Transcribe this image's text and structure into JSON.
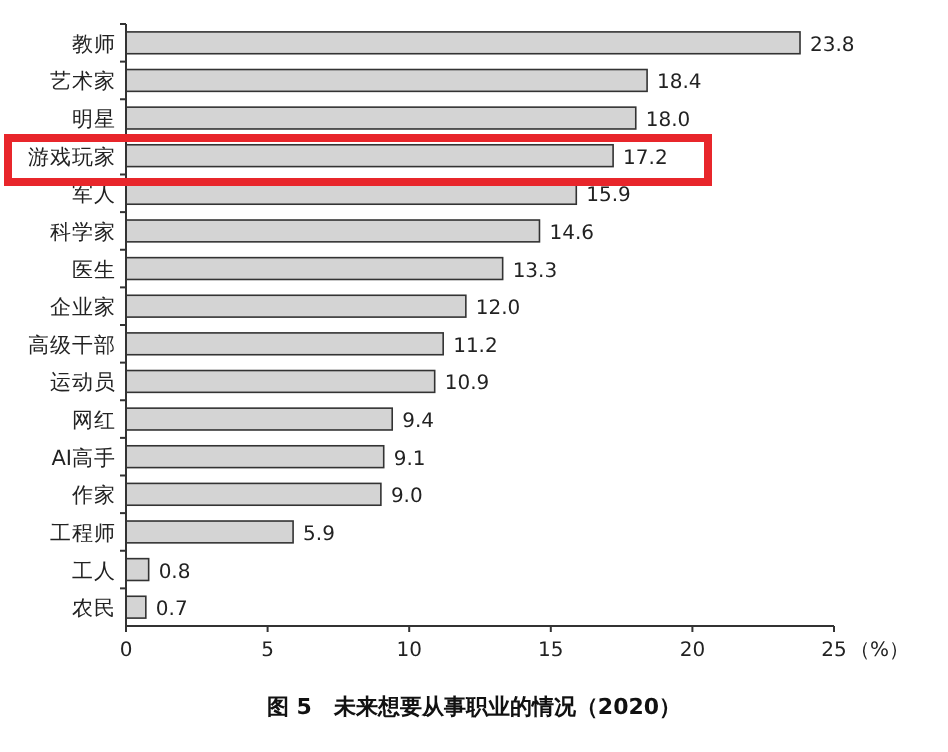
{
  "chart_data": {
    "type": "bar",
    "orientation": "horizontal",
    "categories": [
      "教师",
      "艺术家",
      "明星",
      "游戏玩家",
      "军人",
      "科学家",
      "医生",
      "企业家",
      "高级干部",
      "运动员",
      "网红",
      "AI高手",
      "作家",
      "工程师",
      "工人",
      "农民"
    ],
    "values": [
      23.8,
      18.4,
      18.0,
      17.2,
      15.9,
      14.6,
      13.3,
      12.0,
      11.2,
      10.9,
      9.4,
      9.1,
      9.0,
      5.9,
      0.8,
      0.7
    ],
    "color": "#d4d4d4",
    "value_labels": [
      "23.8",
      "18.4",
      "18.0",
      "17.2",
      "15.9",
      "14.6",
      "13.3",
      "12.0",
      "11.2",
      "10.9",
      "9.4",
      "9.1",
      "9.0",
      "5.9",
      "0.8",
      "0.7"
    ],
    "xlim": [
      0,
      25
    ],
    "xticks": [
      0,
      5,
      10,
      15,
      20,
      25
    ],
    "xlabel": "（%）",
    "annotations": [
      "图 5　未来想要从事职业的情况（2020）"
    ]
  }
}
